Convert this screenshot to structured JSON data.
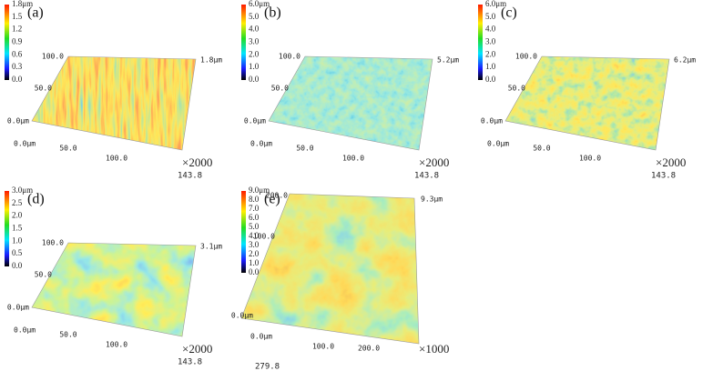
{
  "panels": [
    {
      "label": "(a)",
      "colorbar": [
        "1.8μm",
        "1.5",
        "1.2",
        "0.9",
        "0.6",
        "0.3",
        "0.0"
      ],
      "y_axis": [
        "100.0",
        "50.0",
        "0.0μm"
      ],
      "x_axis": [
        "0.0μm",
        "50.0",
        "100.0"
      ],
      "x_max": "143.8",
      "z_max": "1.8μm",
      "magnification": "×2000"
    },
    {
      "label": "(b)",
      "colorbar": [
        "6.0μm",
        "5.0",
        "4.0",
        "3.0",
        "2.0",
        "1.0",
        "0.0"
      ],
      "y_axis": [
        "100.0",
        "50.0",
        "0.0μm"
      ],
      "x_axis": [
        "0.0μm",
        "50.0",
        "100.0"
      ],
      "x_max": "143.8",
      "z_max": "5.2μm",
      "magnification": "×2000"
    },
    {
      "label": "(c)",
      "colorbar": [
        "6.0μm",
        "5.0",
        "4.0",
        "3.0",
        "2.0",
        "1.0",
        "0.0"
      ],
      "y_axis": [
        "100.0",
        "50.0",
        "0.0μm"
      ],
      "x_axis": [
        "0.0μm",
        "50.0",
        "100.0"
      ],
      "x_max": "143.8",
      "z_max": "6.2μm",
      "magnification": "×2000"
    },
    {
      "label": "(d)",
      "colorbar": [
        "3.0μm",
        "2.5",
        "2.0",
        "1.5",
        "1.0",
        "0.5",
        "0.0"
      ],
      "y_axis": [
        "100.0",
        "50.0",
        "0.0μm"
      ],
      "x_axis": [
        "0.0μm",
        "50.0",
        "100.0"
      ],
      "x_max": "143.8",
      "z_max": "3.1μm",
      "magnification": "×2000"
    },
    {
      "label": "(e)",
      "colorbar": [
        "9.0μm",
        "8.0",
        "7.0",
        "6.0",
        "5.0",
        "4.0",
        "3.0",
        "2.0",
        "1.0",
        "0.0"
      ],
      "y_axis": [
        "200.0",
        "100.0",
        "0.0μm"
      ],
      "x_axis": [
        "0.0μm",
        "100.0",
        "200.0"
      ],
      "x_max": "279.8",
      "z_max": "9.3μm",
      "magnification": "×1000"
    }
  ]
}
